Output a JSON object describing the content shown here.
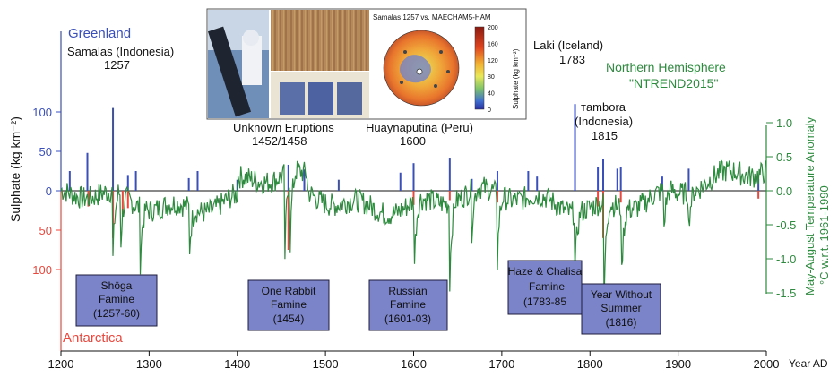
{
  "chart_data": {
    "type": "bar+line",
    "x_axis": {
      "label": "Year AD",
      "ticks": [
        1200,
        1300,
        1400,
        1500,
        1600,
        1700,
        1800,
        1900,
        2000
      ],
      "range": [
        1200,
        2000
      ]
    },
    "left_axis": {
      "label": "Sulphate (kg km⁻²)",
      "greenland_ticks": [
        0,
        50,
        100
      ],
      "antarctica_ticks": [
        50,
        100
      ],
      "greenland_label": "Greenland",
      "antarctica_label": "Antarctica",
      "greenland_color": "#3a4fb8",
      "antarctica_color": "#e8483e"
    },
    "right_axis": {
      "label_line1": "May-August Temperature Anomaly",
      "label_line2": "°C w.r.t. 1961-1990",
      "ticks": [
        1.0,
        0.5,
        0.0,
        -0.5,
        -1.0,
        -1.5
      ],
      "tick_labels": [
        "1.0",
        "0.5",
        "0.0",
        "-0.5",
        "-1.0",
        "-1.5"
      ],
      "color": "#2d8a3e"
    },
    "series_label": {
      "line1": "Northern Hemisphere",
      "line2": "\"NTREND2015\""
    },
    "greenland_bars": [
      {
        "year": 1210,
        "v": 25
      },
      {
        "year": 1230,
        "v": 48
      },
      {
        "year": 1259,
        "v": 105
      },
      {
        "year": 1276,
        "v": 20
      },
      {
        "year": 1285,
        "v": 25
      },
      {
        "year": 1345,
        "v": 16
      },
      {
        "year": 1355,
        "v": 25
      },
      {
        "year": 1400,
        "v": 14
      },
      {
        "year": 1458,
        "v": 33
      },
      {
        "year": 1476,
        "v": 27
      },
      {
        "year": 1515,
        "v": 14
      },
      {
        "year": 1585,
        "v": 23
      },
      {
        "year": 1600,
        "v": 35
      },
      {
        "year": 1641,
        "v": 42
      },
      {
        "year": 1666,
        "v": 15
      },
      {
        "year": 1695,
        "v": 25
      },
      {
        "year": 1730,
        "v": 25
      },
      {
        "year": 1740,
        "v": 18
      },
      {
        "year": 1783,
        "v": 110
      },
      {
        "year": 1809,
        "v": 30
      },
      {
        "year": 1815,
        "v": 40
      },
      {
        "year": 1831,
        "v": 28
      },
      {
        "year": 1835,
        "v": 30
      },
      {
        "year": 1882,
        "v": 18
      },
      {
        "year": 1912,
        "v": 28
      },
      {
        "year": 1991,
        "v": 15
      }
    ],
    "antarctica_bars": [
      {
        "year": 1231,
        "v": 20
      },
      {
        "year": 1259,
        "v": 60
      },
      {
        "year": 1270,
        "v": 30
      },
      {
        "year": 1276,
        "v": 22
      },
      {
        "year": 1458,
        "v": 75
      },
      {
        "year": 1600,
        "v": 18
      },
      {
        "year": 1641,
        "v": 12
      },
      {
        "year": 1695,
        "v": 15
      },
      {
        "year": 1809,
        "v": 20
      },
      {
        "year": 1815,
        "v": 60
      },
      {
        "year": 1835,
        "v": 15
      },
      {
        "year": 1991,
        "v": 10
      }
    ],
    "annotations": [
      {
        "id": "samalas",
        "line1": "Samalas (Indonesia)",
        "line2": "1257"
      },
      {
        "id": "unknown",
        "line1": "Unknown Eruptions",
        "line2": "1452/1458"
      },
      {
        "id": "huaynaputina",
        "line1": "Huaynaputina (Peru)",
        "line2": "1600"
      },
      {
        "id": "laki",
        "line1": "Laki (Iceland)",
        "line2": "1783"
      },
      {
        "id": "tambora",
        "line1": "тambora",
        "line2": "(Indonesia)",
        "line3": "1815"
      }
    ],
    "famines": [
      {
        "id": "shoga",
        "lines": [
          "Shōga",
          "Famine",
          "(1257-60)"
        ]
      },
      {
        "id": "rabbit",
        "lines": [
          "One Rabbit",
          "Famine",
          "(1454)"
        ]
      },
      {
        "id": "russian",
        "lines": [
          "Russian",
          "Famine",
          "(1601-03)"
        ]
      },
      {
        "id": "haze",
        "lines": [
          "Haze & Chalisa",
          "Famine",
          "(1783-85"
        ]
      },
      {
        "id": "nosummer",
        "lines": [
          "Year Without",
          "Summer",
          "(1816)"
        ]
      }
    ],
    "inset": {
      "map_title": "Samalas 1257 vs. MAECHAM5-HAM",
      "colorbar_ticks": [
        "200",
        "160",
        "120",
        "80",
        "40",
        "0"
      ],
      "colorbar_label": "Sulphate (kg km⁻²)"
    }
  }
}
